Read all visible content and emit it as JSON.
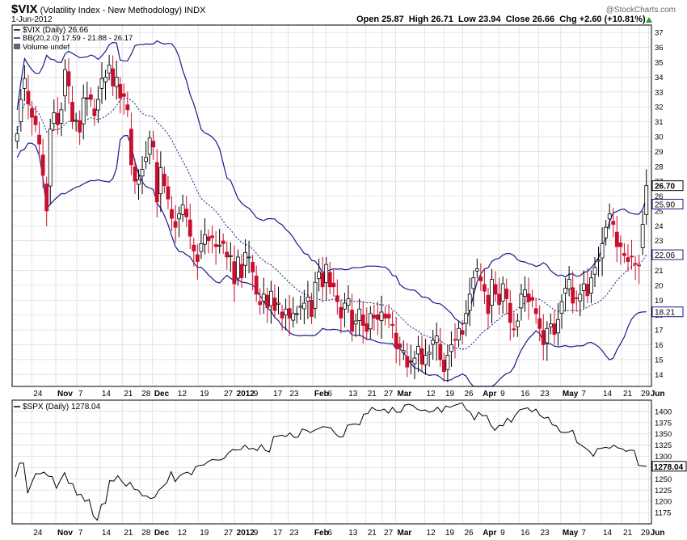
{
  "header": {
    "symbol": "$VIX",
    "name": "(Volatility Index - New Methodology)",
    "exchange": "INDX",
    "date": "1-Jun-2012",
    "watermark": "@StockCharts.com",
    "ohlc_text": "Open 25.87  High 26.71  Low 23.94  Close 26.66  Chg +2.60 (+10.81%)"
  },
  "legend": {
    "vix": "$VIX (Daily) 26.66",
    "bb": "BB(20,2.0) 17.59 - 21.88 - 26.17",
    "volume": "Volume undef",
    "spx": "$SPX (Daily) 1278.04"
  },
  "colors": {
    "up": "#ffffff",
    "down": "#c8102e",
    "band": "#1a1a8c",
    "grid": "#d9d9d9",
    "spx_line": "#000000",
    "arrow": "#2a9d2a"
  },
  "chart_data": [
    {
      "type": "candlestick",
      "title": "$VIX (Volatility Index - New Methodology)",
      "ylim": [
        13.2,
        37.5
      ],
      "y_ticks": [
        14,
        15,
        16,
        17,
        18,
        19,
        20,
        21,
        22,
        23,
        24,
        25,
        26,
        27,
        28,
        29,
        30,
        31,
        32,
        33,
        34,
        35,
        36,
        37
      ],
      "x_tick_labels": [
        "24",
        "Nov",
        "7",
        "14",
        "21",
        "28",
        "Dec",
        "12",
        "19",
        "27",
        "2012",
        "9",
        "17",
        "23",
        "Feb",
        "6",
        "13",
        "21",
        "27",
        "Mar",
        "12",
        "19",
        "26",
        "Apr",
        "9",
        "16",
        "23",
        "May",
        "7",
        "14",
        "21",
        "29",
        "Jun"
      ],
      "close_series": [
        30.2,
        32.5,
        33.9,
        32.2,
        31.3,
        30.8,
        29.5,
        27.4,
        25.0,
        30.5,
        31.6,
        30.8,
        31.8,
        34.5,
        33.4,
        31.0,
        31.1,
        30.3,
        32.6,
        32.6,
        32.5,
        31.4,
        32.5,
        33.9,
        34.0,
        34.8,
        33.4,
        34.0,
        32.6,
        32.7,
        31.8,
        28.1,
        27.0,
        27.1,
        27.8,
        28.6,
        29.9,
        29.3,
        25.6,
        27.9,
        26.7,
        25.8,
        24.5,
        23.9,
        24.8,
        25.4,
        24.6,
        23.3,
        22.3,
        21.6,
        22.8,
        23.4,
        23.0,
        23.2,
        22.6,
        22.7,
        22.8,
        21.9,
        22.0,
        20.1,
        21.9,
        20.5,
        22.2,
        21.9,
        20.9,
        19.4,
        18.7,
        19.4,
        18.5,
        19.6,
        18.3,
        18.8,
        17.8,
        18.4,
        17.8,
        18.1,
        18.1,
        18.6,
        18.8,
        19.2,
        17.9,
        20.2,
        20.9,
        19.9,
        21.4,
        19.9,
        19.9,
        18.9,
        17.8,
        18.8,
        19.1,
        16.9,
        17.6,
        18.4,
        17.3,
        16.9,
        18.1,
        17.8,
        17.7,
        18.2,
        17.8,
        17.8,
        17.3,
        15.8,
        15.8,
        15.6,
        14.5,
        14.9,
        15.1,
        15.9,
        14.7,
        15.3,
        15.5,
        16.3,
        16.6,
        15.0,
        14.2,
        15.3,
        16.0,
        16.3,
        17.1,
        16.7,
        18.1,
        19.4,
        20.5,
        21.1,
        20.3,
        19.6,
        18.1,
        20.4,
        19.4,
        18.7,
        20.1,
        19.1,
        17.5,
        17.0,
        17.6,
        19.4,
        19.7,
        18.9,
        19.0,
        18.1,
        17.1,
        16.0,
        17.1,
        17.4,
        16.7,
        17.7,
        18.9,
        19.8,
        20.4,
        18.8,
        19.1,
        19.4,
        20.1,
        19.3,
        20.5,
        21.2,
        21.7,
        22.8,
        23.9,
        24.8,
        24.1,
        22.6,
        22.6,
        22.0,
        21.6,
        21.9,
        21.4,
        21.3,
        24.1,
        26.7
      ],
      "series": [
        {
          "name": "$VIX (Daily)"
        },
        {
          "name": "BB(20,2.0)"
        }
      ]
    },
    {
      "type": "line",
      "title": "$SPX (Daily) 1278.04",
      "ylim": [
        1150,
        1425
      ],
      "y_ticks": [
        1175,
        1200,
        1225,
        1250,
        1275,
        1300,
        1325,
        1350,
        1375,
        1400
      ],
      "x_tick_labels": [
        "24",
        "Nov",
        "7",
        "14",
        "21",
        "28",
        "Dec",
        "12",
        "19",
        "27",
        "2012",
        "9",
        "17",
        "23",
        "Feb",
        "6",
        "13",
        "21",
        "27",
        "Mar",
        "12",
        "19",
        "26",
        "Apr",
        "9",
        "16",
        "23",
        "May",
        "7",
        "14",
        "21",
        "29",
        "Jun"
      ],
      "last_value_label": "1278.04",
      "values": [
        1254,
        1285,
        1285,
        1218,
        1242,
        1262,
        1261,
        1265,
        1256,
        1255,
        1229,
        1247,
        1264,
        1240,
        1239,
        1214,
        1216,
        1200,
        1204,
        1167,
        1158,
        1193,
        1196,
        1246,
        1245,
        1257,
        1244,
        1234,
        1242,
        1227,
        1225,
        1212,
        1212,
        1206,
        1209,
        1225,
        1233,
        1242,
        1266,
        1244,
        1256,
        1262,
        1265,
        1259,
        1277,
        1280,
        1281,
        1288,
        1293,
        1292,
        1292,
        1296,
        1308,
        1315,
        1314,
        1315,
        1325,
        1316,
        1318,
        1313,
        1326,
        1313,
        1310,
        1344,
        1345,
        1347,
        1344,
        1352,
        1342,
        1343,
        1361,
        1358,
        1353,
        1358,
        1362,
        1366,
        1365,
        1363,
        1351,
        1343,
        1344,
        1369,
        1371,
        1372,
        1370,
        1394,
        1395,
        1409,
        1403,
        1402,
        1405,
        1396,
        1409,
        1398,
        1398,
        1414,
        1416,
        1413,
        1405,
        1402,
        1403,
        1398,
        1401,
        1409,
        1398,
        1412,
        1409,
        1413,
        1416,
        1419,
        1404,
        1398,
        1381,
        1398,
        1390,
        1391,
        1369,
        1358,
        1369,
        1368,
        1385,
        1376,
        1392,
        1403,
        1406,
        1408,
        1399,
        1405,
        1391,
        1385,
        1387,
        1370,
        1368,
        1354,
        1353,
        1354,
        1358,
        1331,
        1325,
        1319,
        1312,
        1300,
        1317,
        1318,
        1320,
        1318,
        1325,
        1319,
        1317,
        1311,
        1314,
        1313,
        1280,
        1279,
        1278
      ]
    }
  ]
}
